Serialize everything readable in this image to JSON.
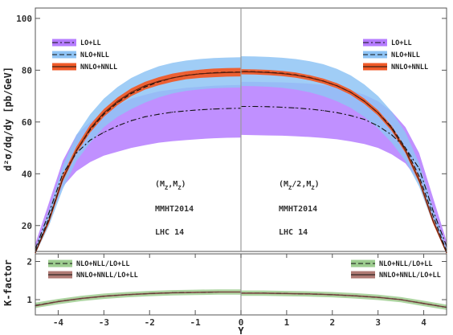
{
  "chart_data": [
    {
      "type": "area",
      "title": "",
      "ylabel": "d²σ/dq/dy [pb/GeV]",
      "xlabel": "",
      "xlim": [
        -4.5,
        4.5
      ],
      "ylim": [
        10,
        104
      ],
      "yticks": [
        "20",
        "40",
        "60",
        "80",
        "100"
      ],
      "grid": false,
      "x": [
        -4.5,
        -4.2,
        -3.9,
        -3.6,
        -3.3,
        -3.0,
        -2.7,
        -2.4,
        -2.1,
        -1.8,
        -1.5,
        -1.2,
        -0.9,
        -0.6,
        -0.3,
        0.0
      ],
      "panels": [
        {
          "label": "(M_Z,M_Z)",
          "sublabels": [
            "MMHT2014",
            "LHC 14"
          ],
          "legend_position": "top-left",
          "series": [
            {
              "name": "LO+LL",
              "color": "#b57cff",
              "style": "dash-dot",
              "central": [
                11,
                25,
                40,
                48,
                53,
                56,
                58.5,
                60.5,
                62,
                63,
                63.8,
                64.3,
                64.7,
                65,
                65.2,
                65.3
              ],
              "low": [
                10,
                22,
                35,
                41,
                44.5,
                47,
                48.5,
                50,
                51,
                52,
                52.6,
                53,
                53.4,
                53.7,
                53.9,
                54
              ],
              "high": [
                13,
                29,
                45,
                55,
                60,
                63.5,
                66.5,
                69,
                70.5,
                71.8,
                72.5,
                73.2,
                73.6,
                74,
                74.2,
                74.3
              ]
            },
            {
              "name": "NLO+NLL",
              "color": "#8fc4f5",
              "style": "dashed",
              "central": [
                10,
                23,
                38,
                49,
                57,
                63,
                67.5,
                71,
                73.5,
                75.5,
                77,
                78,
                78.6,
                79,
                79.2,
                79.3
              ],
              "low": [
                9,
                20,
                34,
                45,
                52,
                58,
                62,
                65,
                67.5,
                69.5,
                71,
                72,
                72.6,
                73,
                73.2,
                73.3
              ],
              "high": [
                11,
                26,
                43,
                55,
                63,
                69,
                73.5,
                77,
                79.5,
                81.5,
                82.8,
                83.7,
                84.3,
                84.7,
                84.9,
                85
              ]
            },
            {
              "name": "NNLO+NNLL",
              "color": "#f05a28",
              "style": "solid",
              "central": [
                9.5,
                22,
                38,
                49,
                57.5,
                63.5,
                68,
                71.5,
                74,
                75.7,
                77,
                78,
                78.6,
                78.9,
                79.1,
                79.2
              ],
              "low": [
                9,
                21,
                37,
                48,
                56,
                62,
                66.5,
                70,
                72.5,
                74.2,
                75.5,
                76.5,
                77,
                77.3,
                77.5,
                77.6
              ],
              "high": [
                10,
                23,
                39.5,
                50.5,
                59,
                65,
                69.5,
                73,
                75.5,
                77.3,
                78.7,
                79.6,
                80.2,
                80.6,
                80.8,
                80.9
              ]
            }
          ]
        },
        {
          "label": "(M_Z/2,M_Z)",
          "sublabels": [
            "MMHT2014",
            "LHC 14"
          ],
          "legend_position": "top-right",
          "series": [
            {
              "name": "LO+LL",
              "color": "#b57cff",
              "style": "dash-dot",
              "central": [
                12,
                26,
                42,
                50,
                55,
                58.5,
                61,
                62.5,
                63.6,
                64.4,
                65,
                65.4,
                65.7,
                65.9,
                66,
                66
              ],
              "low": [
                10,
                22,
                37,
                44,
                47.5,
                50,
                51.5,
                52.5,
                53.3,
                53.8,
                54.2,
                54.5,
                54.7,
                54.8,
                54.9,
                55
              ],
              "high": [
                14,
                31,
                48,
                58,
                64,
                68,
                70.5,
                72.3,
                73.5,
                74.3,
                74.8,
                75.1,
                75.3,
                75.4,
                75.5,
                75.5
              ]
            },
            {
              "name": "NLO+NLL",
              "color": "#8fc4f5",
              "style": "dashed",
              "central": [
                10,
                24,
                39,
                50,
                58,
                63.5,
                68,
                71.5,
                74,
                75.8,
                77.2,
                78.2,
                78.8,
                79.2,
                79.4,
                79.5
              ],
              "low": [
                9,
                21,
                35,
                45,
                52,
                57.5,
                62,
                65.5,
                68,
                70,
                71.5,
                72.5,
                73.2,
                73.6,
                73.8,
                73.9
              ],
              "high": [
                11,
                27,
                44,
                56,
                64,
                70,
                74.5,
                78,
                80.5,
                82.3,
                83.5,
                84.3,
                84.8,
                85.1,
                85.3,
                85.4
              ]
            },
            {
              "name": "NNLO+NNLL",
              "color": "#f05a28",
              "style": "solid",
              "central": [
                9.5,
                22,
                37.5,
                49,
                57.5,
                63.5,
                68,
                71.5,
                74,
                75.8,
                77.1,
                78.1,
                78.7,
                79.1,
                79.3,
                79.4
              ],
              "low": [
                9,
                21,
                36.5,
                48,
                56.5,
                62.5,
                67,
                70.5,
                73,
                74.8,
                76.1,
                77.1,
                77.7,
                78.1,
                78.3,
                78.4
              ],
              "high": [
                10,
                23,
                38.5,
                50,
                58.5,
                64.5,
                69,
                72.5,
                75,
                76.8,
                78.1,
                79.1,
                79.7,
                80.1,
                80.3,
                80.4
              ]
            }
          ]
        }
      ]
    },
    {
      "type": "area",
      "title": "",
      "ylabel": "K-factor",
      "xlabel": "Y",
      "xlim": [
        -4.5,
        4.5
      ],
      "ylim": [
        0.6,
        2.2
      ],
      "xticks": [
        "-4",
        "-3",
        "-2",
        "-1",
        "0",
        "1",
        "2",
        "3",
        "4"
      ],
      "yticks": [
        "1",
        "2"
      ],
      "grid": false,
      "x": [
        -4.5,
        -4.0,
        -3.5,
        -3.0,
        -2.5,
        -2.0,
        -1.5,
        -1.0,
        -0.5,
        0.0
      ],
      "panels": [
        {
          "legend_position": "top-left",
          "series": [
            {
              "name": "NLO+NLL/LO+LL",
              "color": "#9dcc8f",
              "style": "dashed",
              "central": [
                0.85,
                0.95,
                1.03,
                1.09,
                1.13,
                1.16,
                1.18,
                1.19,
                1.2,
                1.2
              ],
              "low": [
                0.78,
                0.88,
                0.96,
                1.02,
                1.06,
                1.09,
                1.11,
                1.12,
                1.13,
                1.13
              ],
              "high": [
                0.92,
                1.02,
                1.1,
                1.16,
                1.2,
                1.23,
                1.25,
                1.26,
                1.27,
                1.27
              ]
            },
            {
              "name": "NNLO+NNLL/LO+LL",
              "color": "#b07a74",
              "style": "solid",
              "central": [
                0.84,
                0.95,
                1.03,
                1.09,
                1.13,
                1.16,
                1.18,
                1.19,
                1.2,
                1.2
              ],
              "low": [
                0.82,
                0.93,
                1.01,
                1.07,
                1.11,
                1.14,
                1.16,
                1.17,
                1.18,
                1.18
              ],
              "high": [
                0.86,
                0.97,
                1.05,
                1.11,
                1.15,
                1.18,
                1.2,
                1.21,
                1.22,
                1.22
              ]
            }
          ]
        },
        {
          "legend_position": "top-right",
          "series": [
            {
              "name": "NLO+NLL/LO+LL",
              "color": "#9dcc8f",
              "style": "dashed",
              "central": [
                0.8,
                0.9,
                1.0,
                1.06,
                1.1,
                1.13,
                1.15,
                1.16,
                1.17,
                1.17
              ],
              "low": [
                0.73,
                0.83,
                0.93,
                0.99,
                1.03,
                1.06,
                1.08,
                1.09,
                1.1,
                1.1
              ],
              "high": [
                0.87,
                0.97,
                1.07,
                1.13,
                1.17,
                1.2,
                1.22,
                1.23,
                1.24,
                1.24
              ]
            },
            {
              "name": "NNLO+NNLL/LO+LL",
              "color": "#b07a74",
              "style": "solid",
              "central": [
                0.8,
                0.9,
                1.0,
                1.06,
                1.1,
                1.13,
                1.15,
                1.16,
                1.17,
                1.17
              ],
              "low": [
                0.78,
                0.88,
                0.98,
                1.04,
                1.08,
                1.11,
                1.13,
                1.14,
                1.15,
                1.15
              ],
              "high": [
                0.82,
                0.92,
                1.02,
                1.08,
                1.12,
                1.15,
                1.17,
                1.18,
                1.19,
                1.19
              ]
            }
          ]
        }
      ]
    }
  ]
}
